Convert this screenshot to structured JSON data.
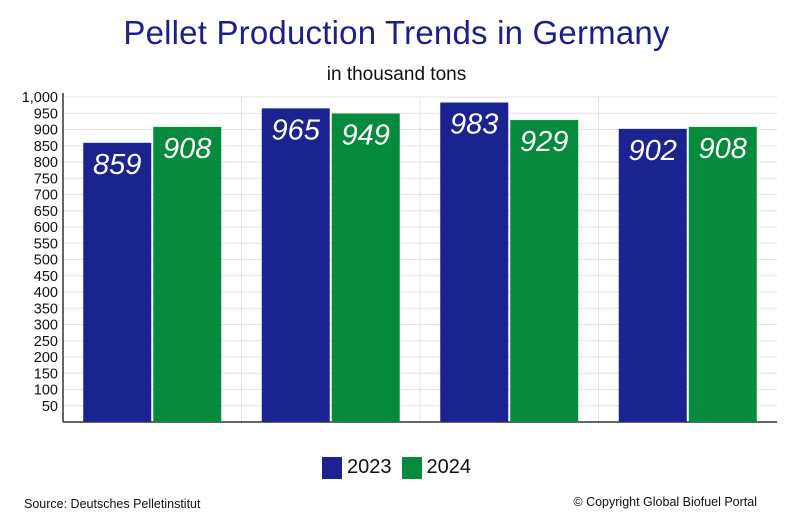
{
  "title": "Pellet Production Trends in Germany",
  "subtitle": "in thousand tons",
  "source": "Source: Deutsches Pelletinstitut",
  "copyright": "© Copyright Global Biofuel Portal",
  "colors": {
    "2023": "#1a2390",
    "2024": "#068a3c",
    "title": "#1a1f8c",
    "grid": "#e3e3e3"
  },
  "chart_data": {
    "type": "bar",
    "title": "Pellet Production Trends in Germany",
    "subtitle": "in thousand tons",
    "categories": [
      "",
      "",
      "",
      ""
    ],
    "series": [
      {
        "name": "2023",
        "values": [
          859,
          965,
          983,
          902
        ]
      },
      {
        "name": "2024",
        "values": [
          908,
          949,
          929,
          908
        ]
      }
    ],
    "ylim": [
      0,
      1000
    ],
    "yticks": [
      "50",
      "100",
      "150",
      "200",
      "250",
      "300",
      "350",
      "400",
      "450",
      "500",
      "550",
      "600",
      "650",
      "700",
      "750",
      "800",
      "850",
      "900",
      "950",
      "1,000"
    ],
    "grid": true,
    "legend": "bottom"
  }
}
